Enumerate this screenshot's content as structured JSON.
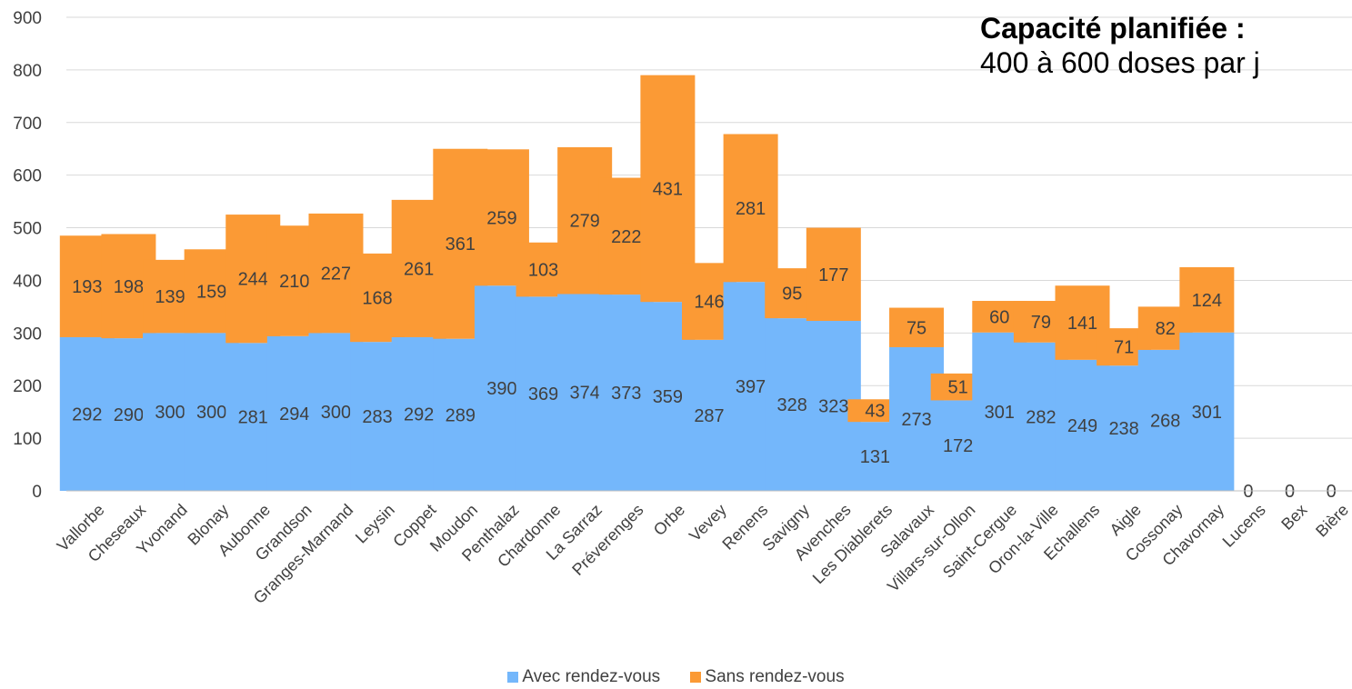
{
  "chart_data": {
    "type": "bar",
    "stacked": true,
    "categories": [
      "Vallorbe",
      "Cheseaux",
      "Yvonand",
      "Blonay",
      "Aubonne",
      "Grandson",
      "Granges-Marnand",
      "Leysin",
      "Coppet",
      "Moudon",
      "Penthalaz",
      "Chardonne",
      "La Sarraz",
      "Préverenges",
      "Orbe",
      "Vevey",
      "Renens",
      "Savigny",
      "Avenches",
      "Les Diablerets",
      "Salavaux",
      "Villars-sur-Ollon",
      "Saint-Cergue",
      "Oron-la-Ville",
      "Echallens",
      "Aigle",
      "Cossonay",
      "Chavornay",
      "Lucens",
      "Bex",
      "Bière"
    ],
    "series": [
      {
        "name": "Avec rendez-vous",
        "color": "#74b7fb",
        "values": [
          292,
          290,
          300,
          300,
          281,
          294,
          300,
          283,
          292,
          289,
          390,
          369,
          374,
          373,
          359,
          287,
          397,
          328,
          323,
          131,
          273,
          172,
          301,
          282,
          249,
          238,
          268,
          301,
          0,
          0,
          0
        ]
      },
      {
        "name": "Sans rendez-vous",
        "color": "#fb9a35",
        "values": [
          193,
          198,
          139,
          159,
          244,
          210,
          227,
          168,
          261,
          361,
          259,
          103,
          279,
          222,
          431,
          146,
          281,
          95,
          177,
          43,
          75,
          51,
          60,
          79,
          141,
          71,
          82,
          124,
          null,
          null,
          null
        ]
      }
    ],
    "ylim": [
      0,
      900
    ],
    "yticks": [
      0,
      100,
      200,
      300,
      400,
      500,
      600,
      700,
      800,
      900
    ],
    "grid": true,
    "legend_position": "bottom",
    "annotation": {
      "title": "Capacité planifiée :",
      "subtitle": "400 à 600 doses par j"
    }
  }
}
